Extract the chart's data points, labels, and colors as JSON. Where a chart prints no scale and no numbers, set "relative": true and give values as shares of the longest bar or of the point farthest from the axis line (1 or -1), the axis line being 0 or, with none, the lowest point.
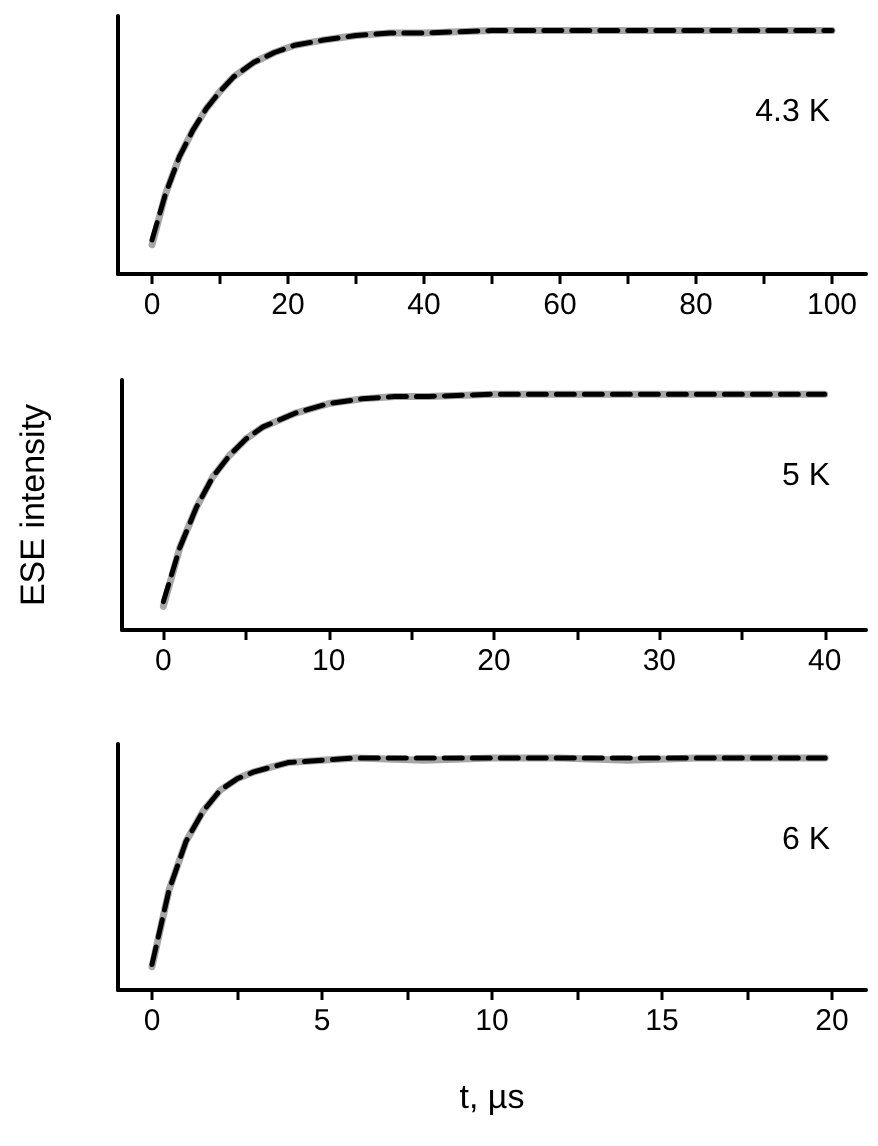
{
  "chart_data": [
    {
      "type": "line",
      "relative": true,
      "tick_labels": "x",
      "grid": false,
      "annotations": [
        "4.3 K"
      ],
      "xlim": [
        -5,
        105
      ],
      "xticks": [
        0,
        {
          "value": 10,
          "label": null
        },
        20,
        {
          "value": 30,
          "label": null
        },
        40,
        {
          "value": 50,
          "label": null
        },
        60,
        {
          "value": 70,
          "label": null
        },
        80,
        {
          "value": 90,
          "label": null
        },
        100
      ],
      "series": [
        {
          "color": "#a6a6a6",
          "line_style": "solid",
          "x": [
            0,
            2,
            4,
            6,
            8,
            10,
            12,
            15,
            18,
            21,
            25,
            30,
            35,
            40,
            50,
            60,
            70,
            80,
            90,
            100
          ],
          "values": [
            0.12,
            0.33,
            0.48,
            0.59,
            0.68,
            0.75,
            0.81,
            0.87,
            0.91,
            0.94,
            0.96,
            0.98,
            0.99,
            0.99,
            1,
            1,
            1,
            1,
            1,
            1
          ]
        },
        {
          "color": "#000000",
          "line_style": "dashed",
          "x": [
            0,
            2,
            4,
            6,
            8,
            10,
            12,
            15,
            18,
            21,
            25,
            30,
            35,
            40,
            50,
            60,
            70,
            80,
            90,
            100
          ],
          "values": [
            0.14,
            0.33,
            0.48,
            0.59,
            0.68,
            0.75,
            0.81,
            0.87,
            0.91,
            0.94,
            0.96,
            0.98,
            0.99,
            0.99,
            1,
            1,
            1,
            1,
            1,
            1
          ]
        }
      ]
    },
    {
      "type": "line",
      "relative": true,
      "tick_labels": "x",
      "grid": false,
      "ylabel": "ESE intensity",
      "annotations": [
        "5 K"
      ],
      "xlim": [
        -2.5,
        42.5
      ],
      "xticks": [
        0,
        {
          "value": 5,
          "label": null
        },
        10,
        {
          "value": 15,
          "label": null
        },
        20,
        {
          "value": 25,
          "label": null
        },
        30,
        {
          "value": 35,
          "label": null
        },
        40
      ],
      "series": [
        {
          "color": "#a6a6a6",
          "line_style": "solid",
          "x": [
            0,
            1,
            2,
            3,
            4,
            5,
            6,
            7,
            8,
            10,
            12,
            14,
            16,
            20,
            25,
            30,
            35,
            40
          ],
          "values": [
            0.1,
            0.35,
            0.52,
            0.65,
            0.74,
            0.81,
            0.86,
            0.89,
            0.92,
            0.96,
            0.98,
            0.99,
            0.99,
            1,
            1,
            1,
            1,
            1
          ]
        },
        {
          "color": "#000000",
          "line_style": "dashed",
          "x": [
            0,
            1,
            2,
            3,
            4,
            5,
            6,
            7,
            8,
            10,
            12,
            14,
            16,
            20,
            25,
            30,
            35,
            40
          ],
          "values": [
            0.12,
            0.35,
            0.52,
            0.65,
            0.74,
            0.81,
            0.86,
            0.89,
            0.92,
            0.96,
            0.98,
            0.99,
            0.99,
            1,
            1,
            1,
            1,
            1
          ]
        }
      ]
    },
    {
      "type": "line",
      "relative": true,
      "tick_labels": "x",
      "grid": false,
      "xlabel": "t, µs",
      "annotations": [
        "6 K"
      ],
      "xlim": [
        -1,
        21
      ],
      "xticks": [
        0,
        {
          "value": 2.5,
          "label": null
        },
        5,
        {
          "value": 7.5,
          "label": null
        },
        10,
        {
          "value": 12.5,
          "label": null
        },
        15,
        {
          "value": 17.5,
          "label": null
        },
        20
      ],
      "series": [
        {
          "color": "#a6a6a6",
          "line_style": "solid",
          "x": [
            0,
            0.5,
            1,
            1.5,
            2,
            2.5,
            3,
            3.5,
            4,
            5,
            6,
            8,
            10,
            12,
            14,
            16,
            18,
            19.8
          ],
          "values": [
            0.1,
            0.43,
            0.64,
            0.77,
            0.86,
            0.91,
            0.94,
            0.96,
            0.98,
            0.99,
            1,
            0.99,
            1,
            1,
            0.99,
            1,
            1,
            1
          ]
        },
        {
          "color": "#000000",
          "line_style": "dashed",
          "x": [
            0,
            0.5,
            1,
            1.5,
            2,
            2.5,
            3,
            3.5,
            4,
            5,
            6,
            8,
            10,
            12,
            14,
            16,
            18,
            19.8
          ],
          "values": [
            0.11,
            0.43,
            0.64,
            0.77,
            0.86,
            0.91,
            0.94,
            0.96,
            0.98,
            0.99,
            1,
            1,
            1,
            1,
            1,
            1,
            1,
            1
          ]
        }
      ]
    }
  ]
}
